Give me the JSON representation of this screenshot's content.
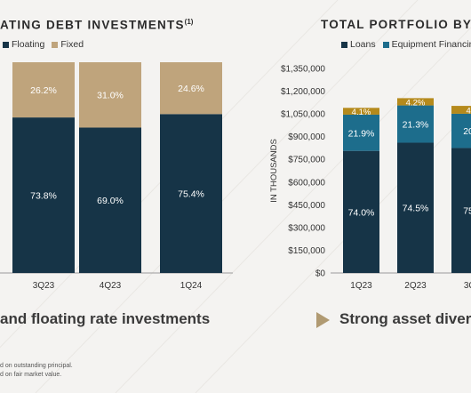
{
  "colors": {
    "navy": "#163447",
    "tan": "#bfa47c",
    "teal": "#1d6d8c",
    "gold": "#b58a1c"
  },
  "left": {
    "title": "ATING DEBT INVESTMENTS",
    "title_sup": "(1)",
    "legend": [
      "Floating",
      "Fixed"
    ],
    "tagline": "and floating rate investments"
  },
  "right": {
    "title": "TOTAL PORTFOLIO BY IN",
    "legend": [
      "Loans",
      "Equipment Financin"
    ],
    "tagline": "Strong asset divers"
  },
  "footnotes": [
    "d on outstanding principal.",
    "d on fair market value."
  ],
  "chart_data": [
    {
      "type": "bar",
      "stacked": true,
      "categories": [
        "3Q23",
        "4Q23",
        "1Q24"
      ],
      "series": [
        {
          "name": "Floating",
          "values": [
            73.8,
            69.0,
            75.4
          ],
          "labels": [
            "73.8%",
            "69.0%",
            "75.4%"
          ]
        },
        {
          "name": "Fixed",
          "values": [
            26.2,
            31.0,
            24.6
          ],
          "labels": [
            "26.2%",
            "31.0%",
            "24.6%"
          ]
        }
      ],
      "ylim": [
        0,
        100
      ]
    },
    {
      "type": "bar",
      "stacked": true,
      "ylabel": "IN THOUSANDS",
      "categories": [
        "1Q23",
        "2Q23",
        "3Q"
      ],
      "yticks": [
        0,
        150000,
        300000,
        450000,
        600000,
        750000,
        900000,
        1050000,
        1200000,
        1350000
      ],
      "yticklabels": [
        "$0",
        "$150,000",
        "$300,000",
        "$450,000",
        "$600,000",
        "$750,000",
        "$900,000",
        "$1,050,000",
        "$1,200,000",
        "$1,350,000"
      ],
      "ylim": [
        0,
        1350000
      ],
      "series": [
        {
          "name": "Loans",
          "values": [
            806000,
            860000,
            825000
          ],
          "labels": [
            "74.0%",
            "74.5%",
            "75."
          ]
        },
        {
          "name": "Equipment Financin",
          "values": [
            239000,
            246000,
            226000
          ],
          "labels": [
            "21.9%",
            "21.3%",
            "20."
          ]
        },
        {
          "name": "",
          "values": [
            45000,
            48000,
            52000
          ],
          "labels": [
            "4.1%",
            "4.2%",
            "4."
          ]
        }
      ]
    }
  ]
}
